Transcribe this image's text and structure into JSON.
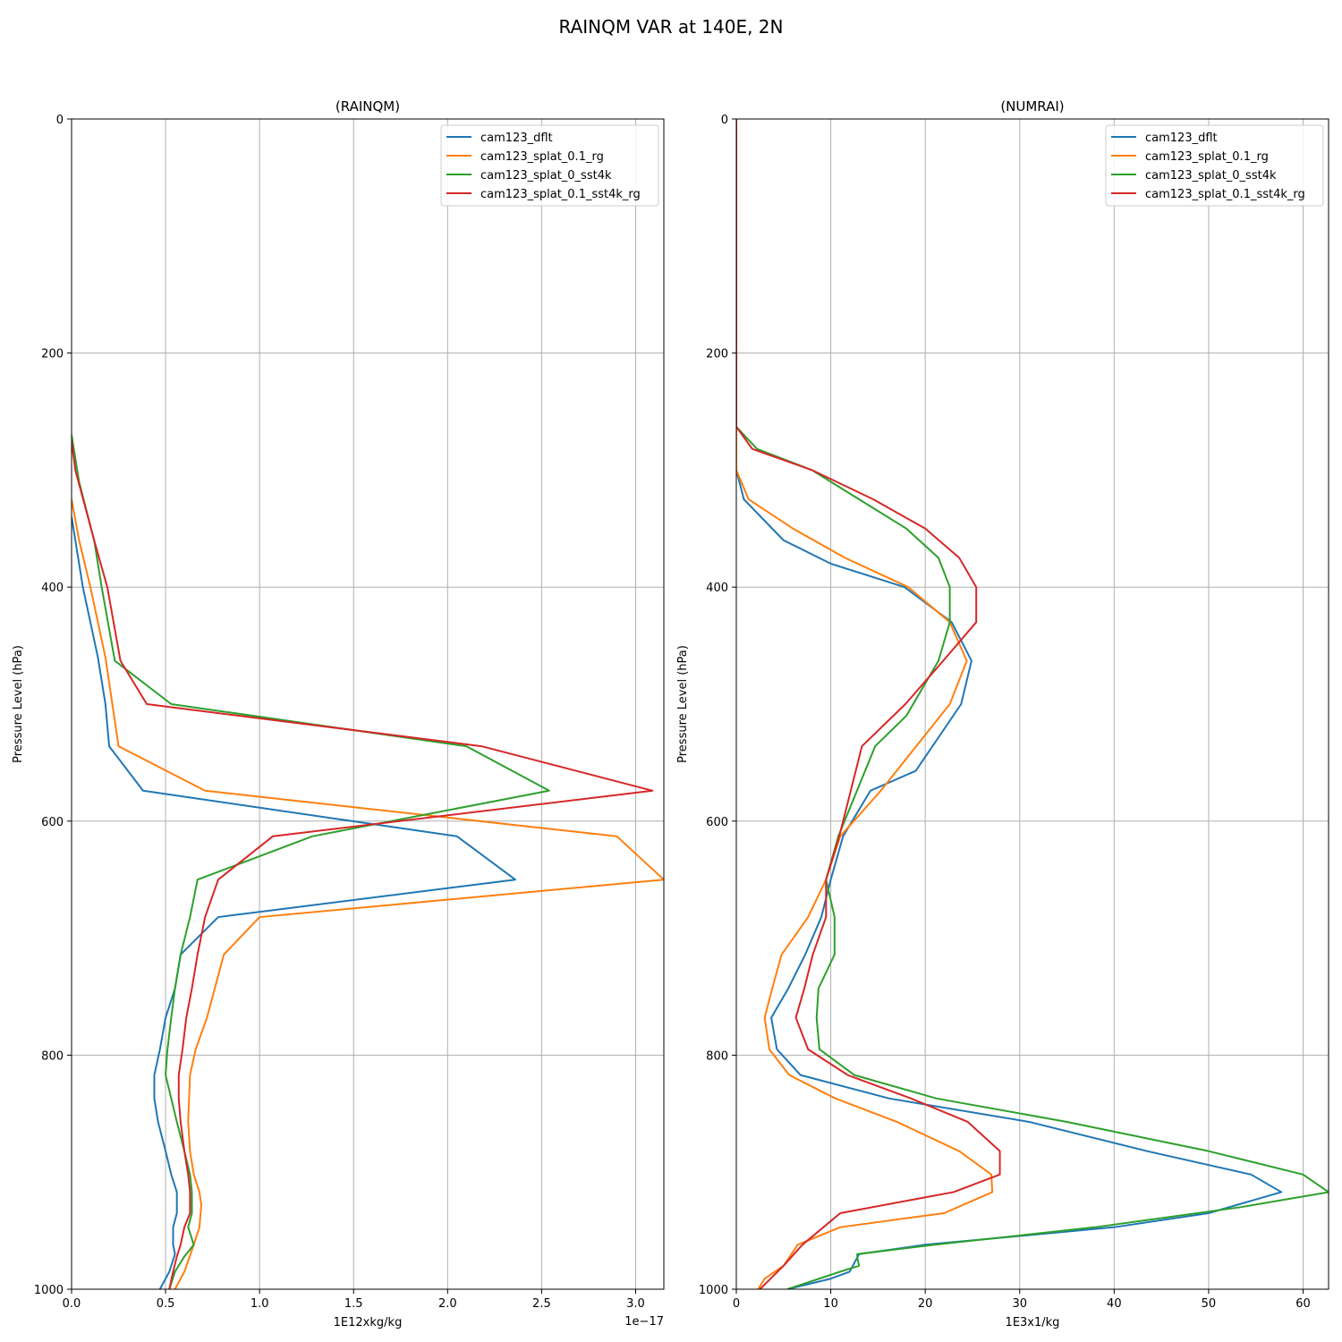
{
  "figure": {
    "title": "RAINQM VAR at 140E, 2N"
  },
  "colors": {
    "cam123_dflt": "#1f77b4",
    "cam123_splat_0.1_rg": "#ff7f0e",
    "cam123_splat_0_sst4k": "#2ca02c",
    "cam123_splat_0.1_sst4k_rg": "#d62728",
    "grid": "#b0b0b0"
  },
  "chart_data": [
    {
      "type": "line",
      "title": "(RAINQM)",
      "xlabel": "1E12xkg/kg",
      "ylabel": "Pressure Level (hPa)",
      "x_offset_label": "1e−17",
      "xlim": [
        0,
        3.15
      ],
      "ylim": [
        1000,
        0
      ],
      "y_inverted": true,
      "xticks": [
        0,
        0.5,
        1.0,
        1.5,
        2.0,
        2.5,
        3.0
      ],
      "xtick_labels": [
        "0.0",
        "0.5",
        "1.0",
        "1.5",
        "2.0",
        "2.5",
        "3.0"
      ],
      "yticks": [
        0,
        200,
        400,
        600,
        800,
        1000
      ],
      "ytick_labels": [
        "0",
        "200",
        "400",
        "600",
        "800",
        "1000"
      ],
      "grid": true,
      "legend_position": "top-right",
      "series": [
        {
          "name": "cam123_dflt",
          "points": [
            [
              0,
              340
            ],
            [
              0.02,
              360
            ],
            [
              0.06,
              400
            ],
            [
              0.14,
              460
            ],
            [
              0.18,
              500
            ],
            [
              0.2,
              536
            ],
            [
              0.38,
              574
            ],
            [
              2.05,
              613
            ],
            [
              2.36,
              650
            ],
            [
              0.78,
              682
            ],
            [
              0.58,
              714
            ],
            [
              0.55,
              743
            ],
            [
              0.5,
              768
            ],
            [
              0.47,
              795
            ],
            [
              0.44,
              817
            ],
            [
              0.44,
              837
            ],
            [
              0.46,
              857
            ],
            [
              0.5,
              882
            ],
            [
              0.53,
              902
            ],
            [
              0.56,
              917
            ],
            [
              0.56,
              935
            ],
            [
              0.54,
              947
            ],
            [
              0.54,
              962
            ],
            [
              0.55,
              970
            ],
            [
              0.52,
              985
            ],
            [
              0.47,
              1000
            ]
          ]
        },
        {
          "name": "cam123_splat_0.1_rg",
          "points": [
            [
              0,
              325
            ],
            [
              0.04,
              360
            ],
            [
              0.1,
              400
            ],
            [
              0.18,
              460
            ],
            [
              0.25,
              536
            ],
            [
              0.71,
              574
            ],
            [
              2.9,
              613
            ],
            [
              3.15,
              650
            ],
            [
              1.0,
              682
            ],
            [
              0.81,
              714
            ],
            [
              0.72,
              768
            ],
            [
              0.66,
              795
            ],
            [
              0.63,
              817
            ],
            [
              0.62,
              857
            ],
            [
              0.63,
              882
            ],
            [
              0.65,
              902
            ],
            [
              0.68,
              917
            ],
            [
              0.69,
              928
            ],
            [
              0.68,
              947
            ],
            [
              0.65,
              962
            ],
            [
              0.6,
              985
            ],
            [
              0.55,
              1000
            ]
          ]
        },
        {
          "name": "cam123_splat_0_sst4k",
          "points": [
            [
              0,
              270
            ],
            [
              0.04,
              310
            ],
            [
              0.12,
              360
            ],
            [
              0.16,
              400
            ],
            [
              0.23,
              463
            ],
            [
              0.53,
              500
            ],
            [
              2.1,
              536
            ],
            [
              2.54,
              574
            ],
            [
              1.28,
              613
            ],
            [
              0.67,
              650
            ],
            [
              0.63,
              682
            ],
            [
              0.58,
              714
            ],
            [
              0.55,
              743
            ],
            [
              0.53,
              768
            ],
            [
              0.51,
              795
            ],
            [
              0.5,
              817
            ],
            [
              0.53,
              837
            ],
            [
              0.56,
              857
            ],
            [
              0.6,
              882
            ],
            [
              0.63,
              902
            ],
            [
              0.64,
              917
            ],
            [
              0.64,
              935
            ],
            [
              0.62,
              947
            ],
            [
              0.65,
              962
            ],
            [
              0.6,
              972
            ],
            [
              0.55,
              985
            ],
            [
              0.52,
              1000
            ]
          ]
        },
        {
          "name": "cam123_splat_0.1_sst4k_rg",
          "points": [
            [
              0,
              275
            ],
            [
              0.02,
              300
            ],
            [
              0.12,
              360
            ],
            [
              0.19,
              400
            ],
            [
              0.26,
              463
            ],
            [
              0.4,
              500
            ],
            [
              2.18,
              536
            ],
            [
              3.09,
              574
            ],
            [
              1.07,
              613
            ],
            [
              0.78,
              650
            ],
            [
              0.71,
              682
            ],
            [
              0.67,
              714
            ],
            [
              0.64,
              743
            ],
            [
              0.61,
              768
            ],
            [
              0.59,
              795
            ],
            [
              0.57,
              817
            ],
            [
              0.57,
              837
            ],
            [
              0.58,
              857
            ],
            [
              0.6,
              882
            ],
            [
              0.62,
              902
            ],
            [
              0.63,
              917
            ],
            [
              0.63,
              935
            ],
            [
              0.6,
              947
            ],
            [
              0.58,
              962
            ],
            [
              0.56,
              972
            ],
            [
              0.54,
              985
            ],
            [
              0.52,
              1000
            ]
          ]
        }
      ]
    },
    {
      "type": "line",
      "title": "(NUMRAI)",
      "xlabel": "1E3x1/kg",
      "ylabel": "Pressure Level (hPa)",
      "xlim": [
        0,
        62.7
      ],
      "ylim": [
        1000,
        0
      ],
      "y_inverted": true,
      "xticks": [
        0,
        10,
        20,
        30,
        40,
        50,
        60
      ],
      "xtick_labels": [
        "0",
        "10",
        "20",
        "30",
        "40",
        "50",
        "60"
      ],
      "yticks": [
        0,
        200,
        400,
        600,
        800,
        1000
      ],
      "ytick_labels": [
        "0",
        "200",
        "400",
        "600",
        "800",
        "1000"
      ],
      "grid": true,
      "legend_position": "top-right",
      "series": [
        {
          "name": "cam123_dflt",
          "points": [
            [
              0,
              0
            ],
            [
              0,
              300
            ],
            [
              0.8,
              325
            ],
            [
              5,
              360
            ],
            [
              10,
              380
            ],
            [
              17.8,
              400
            ],
            [
              22.8,
              430
            ],
            [
              24.9,
              463
            ],
            [
              23.8,
              500
            ],
            [
              19,
              557
            ],
            [
              14.2,
              574
            ],
            [
              11.3,
              613
            ],
            [
              10,
              650
            ],
            [
              9,
              682
            ],
            [
              7.3,
              714
            ],
            [
              5.5,
              743
            ],
            [
              3.7,
              768
            ],
            [
              4.3,
              795
            ],
            [
              6.8,
              817
            ],
            [
              16.2,
              837
            ],
            [
              31,
              857
            ],
            [
              43.5,
              882
            ],
            [
              54.5,
              902
            ],
            [
              57.7,
              917
            ],
            [
              50,
              935
            ],
            [
              40,
              947
            ],
            [
              20,
              962
            ],
            [
              13,
              970
            ],
            [
              12,
              985
            ],
            [
              10,
              991
            ],
            [
              5.4,
              1000
            ]
          ]
        },
        {
          "name": "cam123_splat_0.1_rg",
          "points": [
            [
              0,
              0
            ],
            [
              0,
              300
            ],
            [
              1.3,
              325
            ],
            [
              6,
              350
            ],
            [
              11.5,
              375
            ],
            [
              18.2,
              400
            ],
            [
              22.6,
              430
            ],
            [
              24.4,
              463
            ],
            [
              22.6,
              500
            ],
            [
              15.3,
              574
            ],
            [
              11,
              613
            ],
            [
              9.5,
              650
            ],
            [
              7.6,
              682
            ],
            [
              4.8,
              714
            ],
            [
              3.8,
              743
            ],
            [
              3,
              768
            ],
            [
              3.5,
              795
            ],
            [
              5.6,
              817
            ],
            [
              10.5,
              837
            ],
            [
              17,
              857
            ],
            [
              23.6,
              882
            ],
            [
              27,
              902
            ],
            [
              27.1,
              917
            ],
            [
              22,
              935
            ],
            [
              11,
              947
            ],
            [
              6.5,
              962
            ],
            [
              5,
              980
            ],
            [
              3,
              991
            ],
            [
              2.3,
              1000
            ]
          ]
        },
        {
          "name": "cam123_splat_0_sst4k",
          "points": [
            [
              0,
              0
            ],
            [
              0,
              263
            ],
            [
              2.2,
              282
            ],
            [
              8,
              300
            ],
            [
              13,
              325
            ],
            [
              18,
              350
            ],
            [
              21.4,
              375
            ],
            [
              22.6,
              400
            ],
            [
              22.6,
              430
            ],
            [
              21.4,
              463
            ],
            [
              18,
              510
            ],
            [
              14.7,
              536
            ],
            [
              10.8,
              613
            ],
            [
              9.5,
              650
            ],
            [
              10.4,
              682
            ],
            [
              10.4,
              714
            ],
            [
              8.7,
              743
            ],
            [
              8.5,
              768
            ],
            [
              8.8,
              795
            ],
            [
              12.5,
              817
            ],
            [
              21.2,
              837
            ],
            [
              35,
              857
            ],
            [
              50,
              882
            ],
            [
              60,
              902
            ],
            [
              62.7,
              917
            ],
            [
              53.3,
              930
            ],
            [
              38,
              947
            ],
            [
              21,
              962
            ],
            [
              12.8,
              970
            ],
            [
              12.8,
              973
            ],
            [
              13,
              980
            ],
            [
              11,
              985
            ],
            [
              5.4,
              1000
            ]
          ]
        },
        {
          "name": "cam123_splat_0.1_sst4k_rg",
          "points": [
            [
              0,
              0
            ],
            [
              0,
              263
            ],
            [
              1.7,
              282
            ],
            [
              8,
              300
            ],
            [
              14.5,
              325
            ],
            [
              20,
              350
            ],
            [
              23.6,
              375
            ],
            [
              25.4,
              400
            ],
            [
              25.4,
              430
            ],
            [
              21.9,
              463
            ],
            [
              17.9,
              500
            ],
            [
              13.3,
              536
            ],
            [
              10.9,
              613
            ],
            [
              9.5,
              650
            ],
            [
              9.5,
              682
            ],
            [
              8.1,
              714
            ],
            [
              7.2,
              743
            ],
            [
              6.3,
              768
            ],
            [
              7.6,
              795
            ],
            [
              11.8,
              817
            ],
            [
              18.5,
              837
            ],
            [
              24.5,
              857
            ],
            [
              27.9,
              882
            ],
            [
              27.9,
              902
            ],
            [
              23,
              917
            ],
            [
              11,
              935
            ],
            [
              7,
              962
            ],
            [
              5,
              980
            ],
            [
              2.5,
              1000
            ]
          ]
        }
      ]
    }
  ]
}
